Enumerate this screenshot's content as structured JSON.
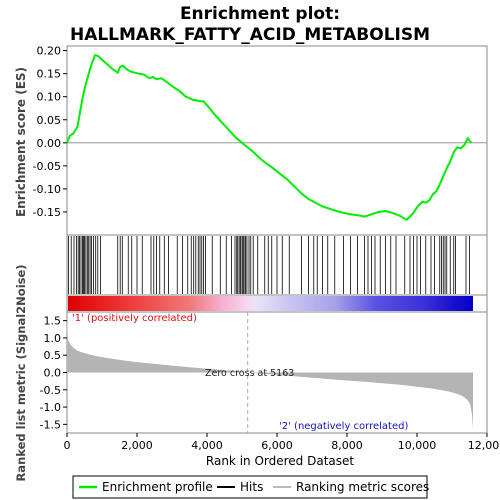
{
  "chart_data": {
    "type": "line",
    "title_line1": "Enrichment plot:",
    "title_line2": "HALLMARK_FATTY_ACID_METABOLISM",
    "xlabel": "Rank in Ordered Dataset",
    "es_ylabel": "Enrichment score (ES)",
    "metric_ylabel": "Ranked list metric (Signal2Noise)",
    "xlim": [
      0,
      12000
    ],
    "x_ticks": [
      0,
      2000,
      4000,
      6000,
      8000,
      10000,
      12000
    ],
    "x_tick_labels": [
      "0",
      "2,000",
      "4,000",
      "6,000",
      "8,000",
      "10,000",
      "12,000"
    ],
    "es_ylim": [
      -0.2,
      0.21
    ],
    "es_ticks": [
      0.2,
      0.15,
      0.1,
      0.05,
      0.0,
      -0.05,
      -0.1,
      -0.15
    ],
    "es_tick_labels": [
      "0.20",
      "0.15",
      "0.10",
      "0.05",
      "0.00",
      "-0.05",
      "-0.10",
      "-0.15"
    ],
    "metric_ylim": [
      -1.75,
      1.75
    ],
    "metric_ticks": [
      1.5,
      1.0,
      0.5,
      0.0,
      -0.5,
      -1.0,
      -1.5
    ],
    "metric_tick_labels": [
      "1.5",
      "1.0",
      "0.5",
      "0.0",
      "-0.5",
      "-1.0",
      "-1.5"
    ],
    "n_genes": 11600,
    "zero_cross": 5163,
    "zero_cross_label": "Zero cross at 5163",
    "positive_label": "'1' (positively correlated)",
    "negative_label": "'2' (negatively correlated)",
    "enrichment_profile": {
      "x": [
        0,
        80,
        180,
        300,
        380,
        450,
        530,
        620,
        700,
        800,
        900,
        1000,
        1150,
        1300,
        1450,
        1520,
        1600,
        1700,
        1800,
        1900,
        2050,
        2200,
        2350,
        2450,
        2550,
        2700,
        2850,
        3000,
        3200,
        3400,
        3500,
        3600,
        3700,
        3800,
        3900,
        4050,
        4200,
        4400,
        4600,
        4800,
        5000,
        5163,
        5350,
        5500,
        5700,
        5900,
        6100,
        6300,
        6500,
        6700,
        6900,
        7100,
        7300,
        7500,
        7700,
        7900,
        8100,
        8300,
        8500,
        8700,
        8900,
        9100,
        9300,
        9500,
        9700,
        9800,
        9900,
        10000,
        10150,
        10250,
        10350,
        10450,
        10550,
        10650,
        10750,
        10850,
        10950,
        11050,
        11150,
        11250,
        11350,
        11450,
        11550
      ],
      "es": [
        0.0,
        0.015,
        0.02,
        0.035,
        0.07,
        0.1,
        0.125,
        0.15,
        0.17,
        0.19,
        0.188,
        0.18,
        0.17,
        0.16,
        0.152,
        0.165,
        0.167,
        0.16,
        0.155,
        0.153,
        0.15,
        0.148,
        0.14,
        0.143,
        0.138,
        0.14,
        0.132,
        0.123,
        0.113,
        0.1,
        0.097,
        0.093,
        0.092,
        0.09,
        0.09,
        0.077,
        0.063,
        0.046,
        0.03,
        0.013,
        0.0,
        -0.01,
        -0.022,
        -0.033,
        -0.045,
        -0.056,
        -0.068,
        -0.08,
        -0.095,
        -0.11,
        -0.122,
        -0.13,
        -0.138,
        -0.143,
        -0.148,
        -0.152,
        -0.155,
        -0.157,
        -0.16,
        -0.155,
        -0.15,
        -0.148,
        -0.152,
        -0.158,
        -0.167,
        -0.16,
        -0.152,
        -0.14,
        -0.128,
        -0.13,
        -0.125,
        -0.112,
        -0.105,
        -0.09,
        -0.072,
        -0.055,
        -0.04,
        -0.02,
        -0.01,
        -0.012,
        -0.005,
        0.01,
        0.0
      ]
    },
    "hits_positions": [
      40,
      120,
      200,
      270,
      320,
      360,
      400,
      440,
      470,
      500,
      540,
      580,
      620,
      660,
      700,
      760,
      820,
      880,
      960,
      1450,
      1520,
      1580,
      1750,
      1850,
      2000,
      2150,
      2400,
      2480,
      2560,
      2650,
      2780,
      2900,
      3150,
      3300,
      3450,
      3550,
      3620,
      3680,
      3750,
      3800,
      3850,
      3900,
      3960,
      4150,
      4380,
      4550,
      4700,
      4800,
      4850,
      4880,
      4920,
      4960,
      5000,
      5030,
      5060,
      5100,
      5140,
      5200,
      5250,
      5320,
      5450,
      5650,
      5750,
      5850,
      6000,
      6150,
      6350,
      6700,
      6900,
      7050,
      7150,
      7300,
      7450,
      7650,
      7900,
      8100,
      8300,
      8500,
      8600,
      8700,
      8800,
      8950,
      9100,
      9250,
      9400,
      9650,
      9800,
      9900,
      10000,
      10100,
      10250,
      10400,
      10500,
      10650,
      10700,
      10750,
      10800,
      10850,
      10950,
      11050,
      11100,
      11400,
      11500
    ],
    "metric_profile": {
      "x": [
        0,
        30,
        100,
        200,
        300,
        500,
        800,
        1200,
        1600,
        2000,
        2500,
        3000,
        3500,
        4000,
        4500,
        5000,
        5163,
        5500,
        6000,
        6500,
        7000,
        7500,
        8000,
        8500,
        9000,
        9500,
        10000,
        10400,
        10700,
        10900,
        11100,
        11250,
        11350,
        11450,
        11520,
        11570,
        11600
      ],
      "y": [
        1.6,
        0.95,
        0.8,
        0.7,
        0.63,
        0.56,
        0.48,
        0.41,
        0.35,
        0.3,
        0.25,
        0.2,
        0.15,
        0.11,
        0.07,
        0.03,
        0.0,
        -0.03,
        -0.07,
        -0.11,
        -0.15,
        -0.19,
        -0.23,
        -0.27,
        -0.31,
        -0.35,
        -0.41,
        -0.46,
        -0.51,
        -0.55,
        -0.6,
        -0.66,
        -0.72,
        -0.8,
        -0.92,
        -1.2,
        -1.62
      ]
    },
    "colors": {
      "enrichment_line": "#00ee00",
      "hits": "#000000",
      "metric_fill": "#b4b4b4",
      "positive": "#ff0000",
      "negative": "#0000ff",
      "zero_line": "#aaaaaa"
    },
    "legend": [
      {
        "label": "Enrichment profile",
        "kind": "line",
        "color": "#00ee00"
      },
      {
        "label": "Hits",
        "kind": "line",
        "color": "#000000"
      },
      {
        "label": "Ranking metric scores",
        "kind": "line",
        "color": "#bbbbbb"
      }
    ]
  }
}
